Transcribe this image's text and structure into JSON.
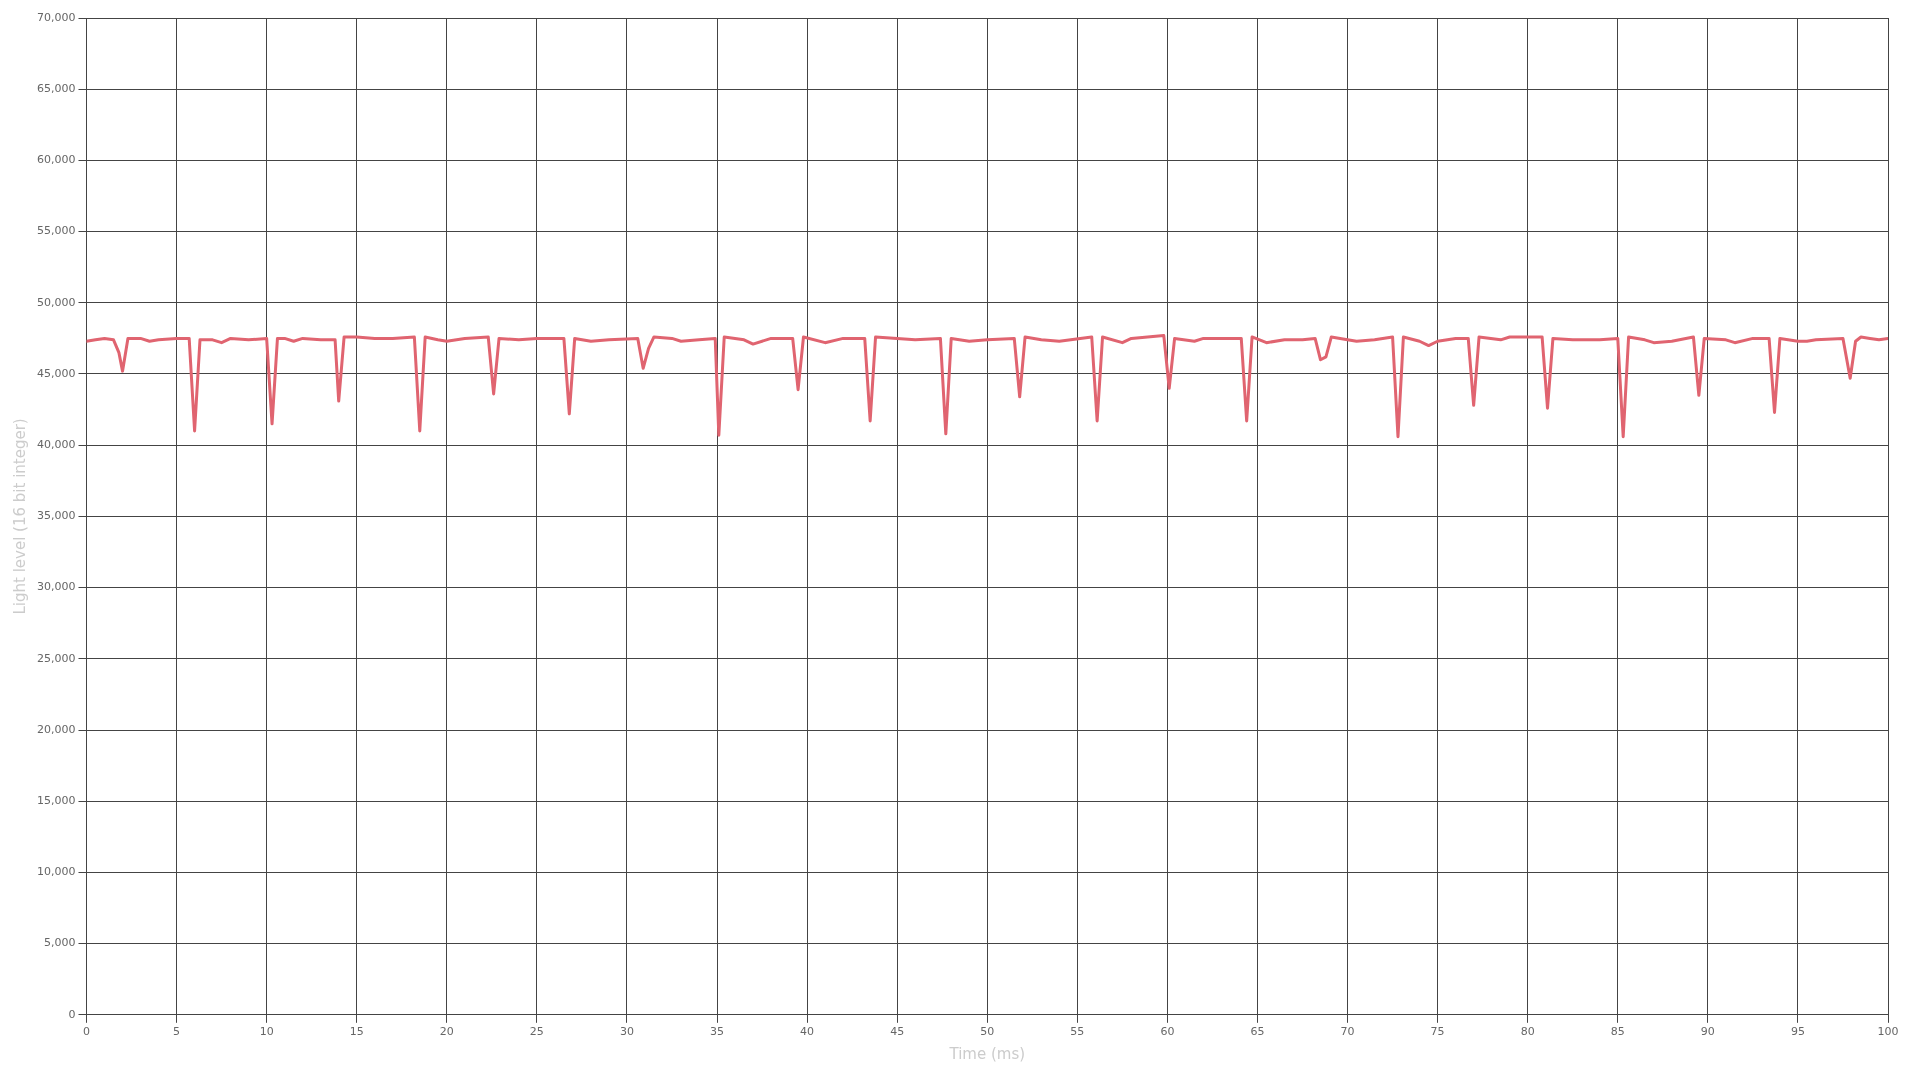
{
  "chart_data": {
    "type": "line",
    "xlabel": "Time (ms)",
    "ylabel": "Light level (16 bit integer)",
    "xlim": [
      0,
      100
    ],
    "xticks": [
      0,
      5,
      10,
      15,
      20,
      25,
      30,
      35,
      40,
      45,
      50,
      55,
      60,
      65,
      70,
      75,
      80,
      85,
      90,
      95,
      100
    ],
    "ylim": [
      0,
      70000
    ],
    "yticks": [
      0,
      {
        "value": 5000,
        "label": "5,000"
      },
      {
        "value": 10000,
        "label": "10,000"
      },
      {
        "value": 15000,
        "label": "15,000"
      },
      {
        "value": 20000,
        "label": "20,000"
      },
      {
        "value": 25000,
        "label": "25,000"
      },
      {
        "value": 30000,
        "label": "30,000"
      },
      {
        "value": 35000,
        "label": "35,000"
      },
      {
        "value": 40000,
        "label": "40,000"
      },
      {
        "value": 45000,
        "label": "45,000"
      },
      {
        "value": 50000,
        "label": "50,000"
      },
      {
        "value": 55000,
        "label": "55,000"
      },
      {
        "value": 60000,
        "label": "60,000"
      },
      {
        "value": 65000,
        "label": "65,000"
      },
      {
        "value": 70000,
        "label": "70,000"
      }
    ],
    "grid": true,
    "legend": false,
    "marker": "none",
    "line_style": "solid",
    "x": [
      0,
      0.5,
      1,
      1.5,
      1.8,
      2.0,
      2.3,
      3,
      3.5,
      4,
      5,
      5.7,
      6.0,
      6.3,
      7,
      7.5,
      8,
      9,
      10,
      10.3,
      10.6,
      11,
      11.5,
      12,
      13,
      13.8,
      14.0,
      14.3,
      15,
      16,
      17,
      18.2,
      18.5,
      18.8,
      19.5,
      20,
      21,
      22.3,
      22.6,
      22.9,
      24,
      25,
      26.5,
      26.8,
      27.1,
      28,
      29,
      30.6,
      30.9,
      31.2,
      31.5,
      32.5,
      33,
      34,
      34.9,
      35.1,
      35.4,
      36.5,
      37,
      38,
      39.2,
      39.5,
      39.8,
      41,
      42,
      43.2,
      43.5,
      43.8,
      45,
      46,
      47.4,
      47.7,
      48,
      49,
      50,
      51.5,
      51.8,
      52.1,
      53,
      54,
      55.8,
      56.1,
      56.4,
      57.5,
      58,
      59.8,
      60.1,
      60.4,
      61.5,
      62,
      63,
      64.1,
      64.4,
      64.7,
      65.5,
      66.5,
      67.5,
      68.2,
      68.5,
      68.8,
      69.1,
      70,
      70.5,
      71.5,
      72.5,
      72.8,
      73.1,
      74,
      74.5,
      75,
      76,
      76.7,
      77.0,
      77.3,
      78.5,
      79,
      80,
      80.8,
      81.1,
      81.4,
      82.5,
      84,
      85,
      85.3,
      85.6,
      86.5,
      87,
      88,
      89.2,
      89.5,
      89.8,
      91,
      91.5,
      92.5,
      93.4,
      93.7,
      94,
      95,
      95.5,
      96,
      97.5,
      97.9,
      98.2,
      98.5,
      99,
      99.5,
      100
    ],
    "series": [
      {
        "color": "#e06470",
        "values": [
          47300,
          47400,
          47500,
          47400,
          46500,
          45200,
          47500,
          47500,
          47300,
          47400,
          47500,
          47500,
          41000,
          47400,
          47400,
          47200,
          47500,
          47400,
          47500,
          41500,
          47500,
          47500,
          47300,
          47500,
          47400,
          47400,
          43100,
          47600,
          47600,
          47500,
          47500,
          47600,
          41000,
          47600,
          47400,
          47300,
          47500,
          47600,
          43600,
          47500,
          47400,
          47500,
          47500,
          42200,
          47500,
          47300,
          47400,
          47500,
          45400,
          46800,
          47600,
          47500,
          47300,
          47400,
          47500,
          40700,
          47600,
          47400,
          47100,
          47500,
          47500,
          43900,
          47600,
          47200,
          47500,
          47500,
          41700,
          47600,
          47500,
          47400,
          47500,
          40800,
          47500,
          47300,
          47400,
          47500,
          43400,
          47600,
          47400,
          47300,
          47600,
          41700,
          47600,
          47200,
          47500,
          47700,
          44000,
          47500,
          47300,
          47500,
          47500,
          47500,
          41700,
          47600,
          47200,
          47400,
          47400,
          47500,
          46000,
          46200,
          47600,
          47400,
          47300,
          47400,
          47600,
          40600,
          47600,
          47300,
          47000,
          47300,
          47500,
          47500,
          42800,
          47600,
          47400,
          47600,
          47600,
          47600,
          42600,
          47500,
          47400,
          47400,
          47500,
          40600,
          47600,
          47400,
          47200,
          47300,
          47600,
          43500,
          47500,
          47400,
          47200,
          47500,
          47500,
          42300,
          47500,
          47300,
          47300,
          47400,
          47500,
          44700,
          47300,
          47600,
          47500,
          47400,
          47500
        ]
      }
    ]
  }
}
